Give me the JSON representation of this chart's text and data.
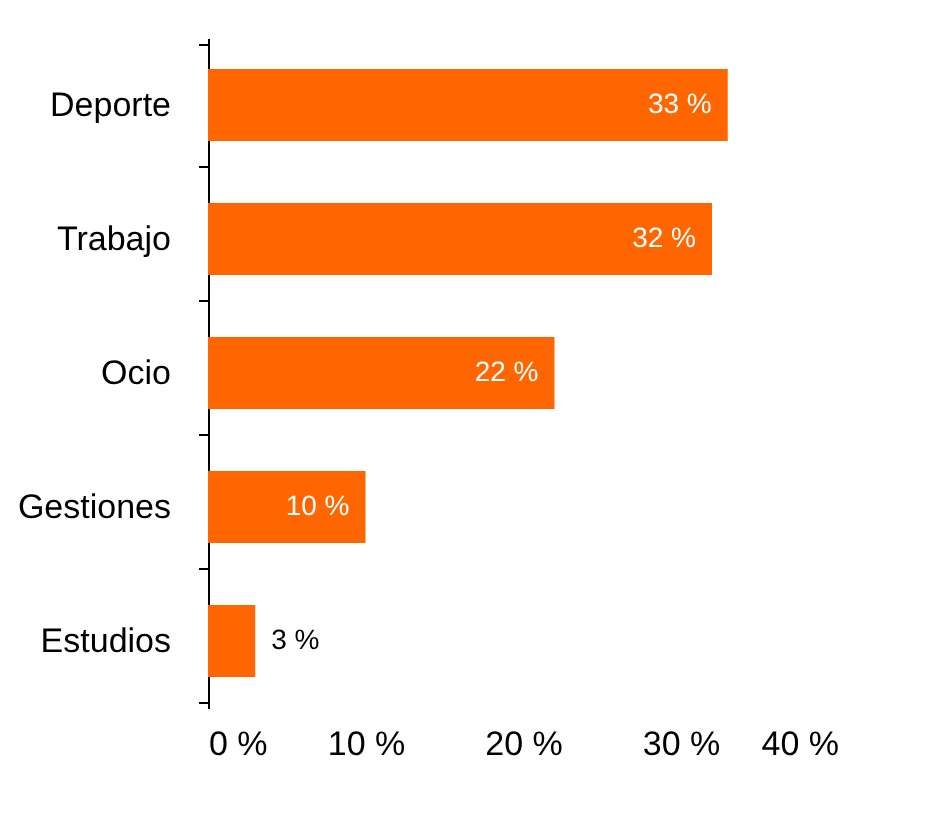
{
  "chart_data": {
    "type": "bar",
    "orientation": "horizontal",
    "categories": [
      "Deporte",
      "Trabajo",
      "Ocio",
      "Gestiones",
      "Estudios"
    ],
    "values": [
      33,
      32,
      22,
      10,
      3
    ],
    "value_labels": [
      "33 %",
      "32 %",
      "22 %",
      "10 %",
      "3 %"
    ],
    "color": "#ff6600",
    "xlim": [
      0,
      40
    ],
    "xticks": [
      {
        "value": 0,
        "label": "0 %"
      },
      {
        "value": 10,
        "label": "10 %"
      },
      {
        "value": 20,
        "label": "20 %"
      },
      {
        "value": 30,
        "label": "30 %"
      },
      {
        "value": 40,
        "label": "40 %"
      }
    ],
    "grid": false
  }
}
